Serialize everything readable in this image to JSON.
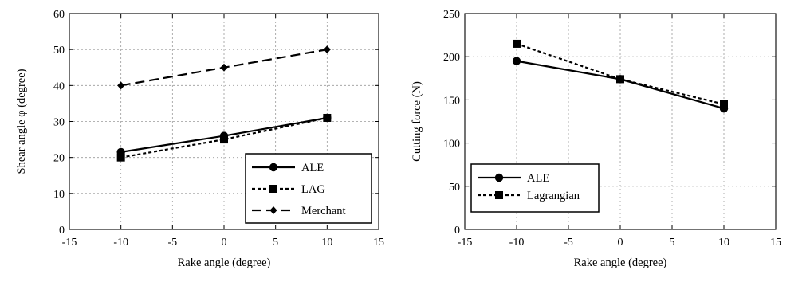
{
  "chart_data": [
    {
      "type": "line",
      "xlabel": "Rake angle (degree)",
      "ylabel": "Shear angle φ (degree)",
      "xlim": [
        -15,
        15
      ],
      "ylim": [
        0,
        60
      ],
      "xticks": [
        -15,
        -10,
        -5,
        0,
        5,
        10,
        15
      ],
      "yticks": [
        0,
        10,
        20,
        30,
        40,
        50,
        60
      ],
      "grid": true,
      "legend_position": "bottom-right",
      "x": [
        -10,
        0,
        10
      ],
      "series": [
        {
          "name": "ALE",
          "values": [
            21.5,
            26,
            31
          ],
          "color": "#000000",
          "style": "solid",
          "marker": "circle"
        },
        {
          "name": "LAG",
          "values": [
            20,
            25,
            31
          ],
          "color": "#000000",
          "style": "dotted",
          "marker": "square"
        },
        {
          "name": "Merchant",
          "values": [
            40,
            45,
            50
          ],
          "color": "#000000",
          "style": "dashed",
          "marker": "diamond"
        }
      ]
    },
    {
      "type": "line",
      "xlabel": "Rake angle (degree)",
      "ylabel": "Cutting force (N)",
      "xlim": [
        -15,
        15
      ],
      "ylim": [
        0,
        250
      ],
      "xticks": [
        -15,
        -10,
        -5,
        0,
        5,
        10,
        15
      ],
      "yticks": [
        0,
        50,
        100,
        150,
        200,
        250
      ],
      "grid": true,
      "legend_position": "bottom-left",
      "x": [
        -10,
        0,
        10
      ],
      "series": [
        {
          "name": "ALE",
          "values": [
            195,
            174,
            140
          ],
          "color": "#000000",
          "style": "solid",
          "marker": "circle"
        },
        {
          "name": "Lagrangian",
          "values": [
            215,
            174,
            145
          ],
          "color": "#000000",
          "style": "dotted",
          "marker": "square"
        }
      ]
    }
  ]
}
